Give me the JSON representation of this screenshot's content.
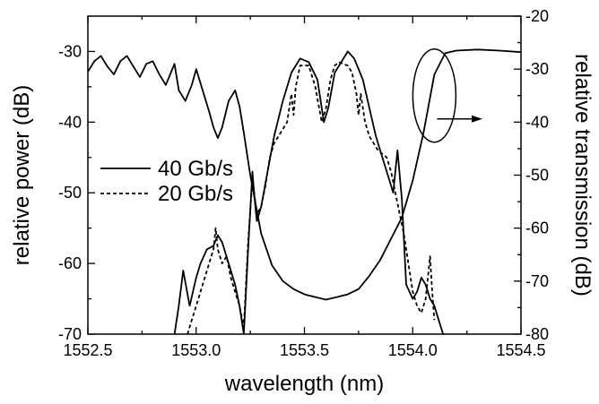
{
  "chart_data": {
    "type": "line",
    "xlabel": "wavelength (nm)",
    "ylabel_left": "relative power (dB)",
    "ylabel_right": "relative transmission (dB)",
    "xlim": [
      1552.5,
      1554.5
    ],
    "ylim_left": [
      -70,
      -25
    ],
    "ylim_right": [
      -80,
      -20
    ],
    "x_ticks": [
      "1552.5",
      "1553.0",
      "1553.5",
      "1554.0",
      "1554.5"
    ],
    "y_left_ticks": [
      "-30",
      "-40",
      "-50",
      "-60",
      "-70"
    ],
    "y_right_ticks": [
      "-20",
      "-30",
      "-40",
      "-50",
      "-60",
      "-70",
      "-80"
    ],
    "grid": false,
    "legend": {
      "placement": "middle-left",
      "entries": [
        {
          "label": "40 Gb/s",
          "style": "solid"
        },
        {
          "label": "20 Gb/s",
          "style": "dashed"
        }
      ]
    },
    "annotation": {
      "type": "ellipse-with-arrow",
      "points_to": "right-axis",
      "target_series": "transmission"
    },
    "series": [
      {
        "key": "transmission",
        "axis": "right",
        "style": "solid",
        "x": [
          1552.5,
          1552.53,
          1552.56,
          1552.59,
          1552.62,
          1552.65,
          1552.68,
          1552.71,
          1552.74,
          1552.77,
          1552.8,
          1552.83,
          1552.86,
          1552.9,
          1552.92,
          1552.95,
          1552.98,
          1553.0,
          1553.03,
          1553.06,
          1553.08,
          1553.1,
          1553.12,
          1553.15,
          1553.18,
          1553.2,
          1553.22,
          1553.25,
          1553.3,
          1553.35,
          1553.4,
          1553.45,
          1553.5,
          1553.55,
          1553.6,
          1553.65,
          1553.7,
          1553.75,
          1553.8,
          1553.85,
          1553.9,
          1553.95,
          1554.0,
          1554.05,
          1554.1,
          1554.15,
          1554.2,
          1554.3,
          1554.4,
          1554.5
        ],
        "y": [
          -30.5,
          -28.5,
          -27.5,
          -29.5,
          -31,
          -28.5,
          -27.5,
          -29.5,
          -31.5,
          -29,
          -28.5,
          -31,
          -33,
          -29,
          -34,
          -36,
          -33,
          -30,
          -34,
          -38,
          -41,
          -43,
          -41,
          -36,
          -34,
          -37,
          -42,
          -50,
          -61,
          -67,
          -70,
          -71.5,
          -72.5,
          -73,
          -73.5,
          -73,
          -72.5,
          -71.5,
          -69,
          -66,
          -62,
          -58,
          -51,
          -42,
          -31,
          -27,
          -26.5,
          -26.3,
          -26.5,
          -26.8
        ]
      },
      {
        "key": "power-40",
        "axis": "left",
        "style": "solid",
        "x": [
          1552.9,
          1552.92,
          1552.94,
          1552.97,
          1553.0,
          1553.02,
          1553.05,
          1553.08,
          1553.1,
          1553.12,
          1553.15,
          1553.18,
          1553.2,
          1553.22,
          1553.24,
          1553.26,
          1553.27,
          1553.28,
          1553.3,
          1553.33,
          1553.36,
          1553.4,
          1553.44,
          1553.48,
          1553.52,
          1553.56,
          1553.59,
          1553.61,
          1553.64,
          1553.67,
          1553.7,
          1553.73,
          1553.77,
          1553.8,
          1553.83,
          1553.86,
          1553.89,
          1553.91,
          1553.93,
          1553.95,
          1553.97,
          1554.0,
          1554.02,
          1554.04,
          1554.06,
          1554.08,
          1554.1,
          1554.12,
          1554.14,
          1554.15
        ],
        "y": [
          -70,
          -66,
          -61,
          -66,
          -62,
          -60,
          -58,
          -57.5,
          -56,
          -57,
          -60,
          -63,
          -66,
          -70,
          -58,
          -47,
          -51,
          -54,
          -52,
          -47,
          -42,
          -37,
          -33,
          -31,
          -31.5,
          -34,
          -40,
          -38,
          -33,
          -31.5,
          -30,
          -31,
          -34,
          -38,
          -42,
          -45,
          -48,
          -50,
          -44,
          -51,
          -63,
          -65,
          -64,
          -62,
          -63,
          -65,
          -66,
          -68,
          -70,
          -70
        ]
      },
      {
        "key": "power-20",
        "axis": "left",
        "style": "dashed",
        "x": [
          1552.96,
          1552.98,
          1553.0,
          1553.02,
          1553.04,
          1553.06,
          1553.08,
          1553.09,
          1553.1,
          1553.12,
          1553.14,
          1553.16,
          1553.18,
          1553.2,
          1553.22,
          1553.24,
          1553.26,
          1553.28,
          1553.3,
          1553.32,
          1553.34,
          1553.36,
          1553.38,
          1553.4,
          1553.42,
          1553.44,
          1553.45,
          1553.46,
          1553.48,
          1553.52,
          1553.55,
          1553.58,
          1553.6,
          1553.62,
          1553.64,
          1553.66,
          1553.68,
          1553.7,
          1553.72,
          1553.74,
          1553.75,
          1553.76,
          1553.78,
          1553.8,
          1553.84,
          1553.88,
          1553.9,
          1553.92,
          1553.94,
          1553.96,
          1553.98,
          1554.0,
          1554.02,
          1554.04,
          1554.06,
          1554.07,
          1554.08,
          1554.09,
          1554.1
        ],
        "y": [
          -70,
          -68,
          -66,
          -64,
          -62,
          -60,
          -58,
          -55,
          -58,
          -60,
          -59,
          -62,
          -64,
          -66,
          -69,
          -57,
          -48,
          -53,
          -52,
          -49,
          -45,
          -43,
          -42,
          -41,
          -40,
          -36,
          -39,
          -35,
          -32,
          -32,
          -35,
          -40,
          -38,
          -34,
          -32,
          -31.5,
          -31.8,
          -32,
          -33,
          -36,
          -39,
          -36,
          -40,
          -42,
          -44,
          -45,
          -47,
          -50,
          -53,
          -56,
          -60,
          -64,
          -66,
          -67,
          -65,
          -62,
          -59,
          -64,
          -68
        ]
      }
    ]
  }
}
